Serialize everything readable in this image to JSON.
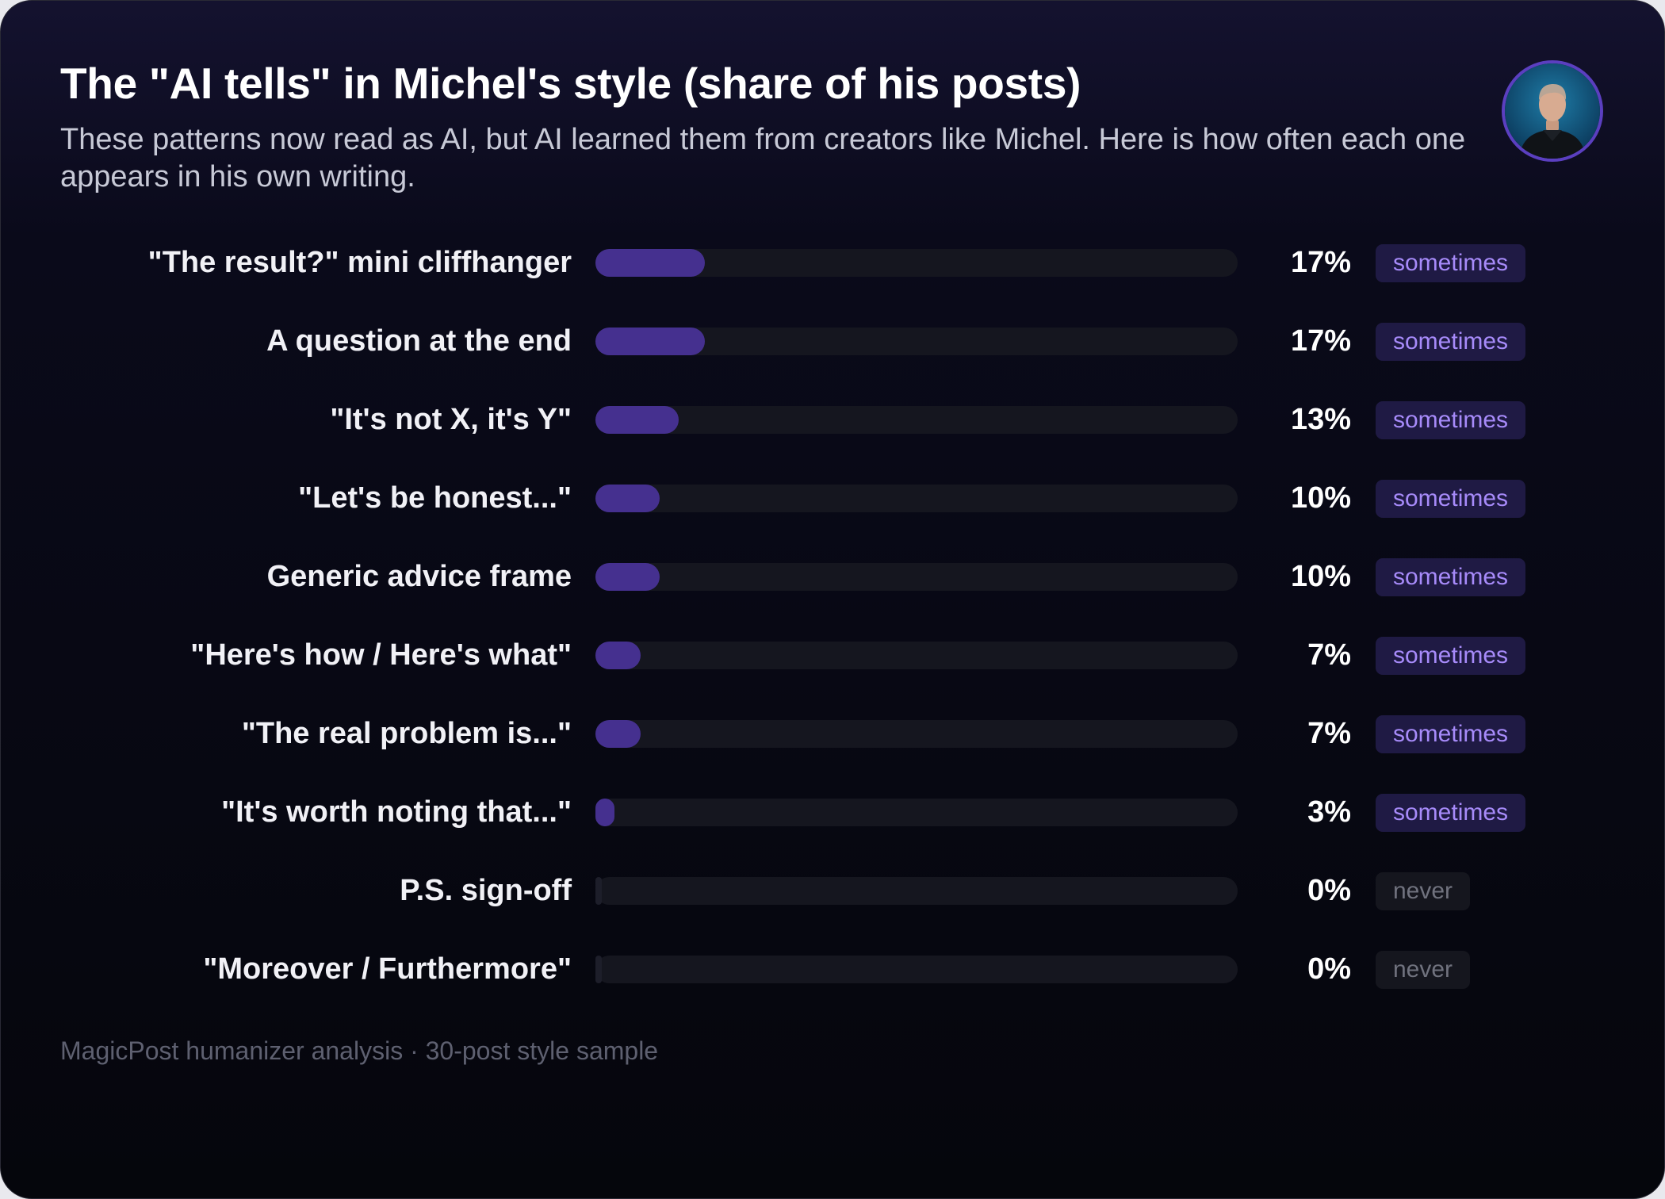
{
  "title": "The \"AI tells\" in Michel's style (share of his posts)",
  "subtitle": "These patterns now read as AI, but AI learned them from creators like Michel. Here is how often each one appears in his own writing.",
  "footer": "MagicPost humanizer analysis · 30-post style sample",
  "colors": {
    "bar_fill": "#45308f",
    "bar_track": "#15161f",
    "badge_sometimes_bg": "#1f1a44",
    "badge_sometimes_text": "#a78bfa",
    "badge_never_bg": "#15161e",
    "badge_never_text": "#70727e"
  },
  "avatar": {
    "icon": "person-portrait-icon"
  },
  "chart_data": {
    "type": "bar",
    "orientation": "horizontal",
    "title": "The \"AI tells\" in Michel's style (share of his posts)",
    "xlim": [
      0,
      100
    ],
    "unit": "%",
    "grid": false,
    "rows": [
      {
        "label": "\"The result?\" mini cliffhanger",
        "value": 17,
        "display": "17%",
        "badge": "sometimes"
      },
      {
        "label": "A question at the end",
        "value": 17,
        "display": "17%",
        "badge": "sometimes"
      },
      {
        "label": "\"It's not X, it's Y\"",
        "value": 13,
        "display": "13%",
        "badge": "sometimes"
      },
      {
        "label": "\"Let's be honest...\"",
        "value": 10,
        "display": "10%",
        "badge": "sometimes"
      },
      {
        "label": "Generic advice frame",
        "value": 10,
        "display": "10%",
        "badge": "sometimes"
      },
      {
        "label": "\"Here's how / Here's what\"",
        "value": 7,
        "display": "7%",
        "badge": "sometimes"
      },
      {
        "label": "\"The real problem is...\"",
        "value": 7,
        "display": "7%",
        "badge": "sometimes"
      },
      {
        "label": "\"It's worth noting that...\"",
        "value": 3,
        "display": "3%",
        "badge": "sometimes"
      },
      {
        "label": "P.S. sign-off",
        "value": 0,
        "display": "0%",
        "badge": "never"
      },
      {
        "label": "\"Moreover / Furthermore\"",
        "value": 0,
        "display": "0%",
        "badge": "never"
      }
    ]
  }
}
